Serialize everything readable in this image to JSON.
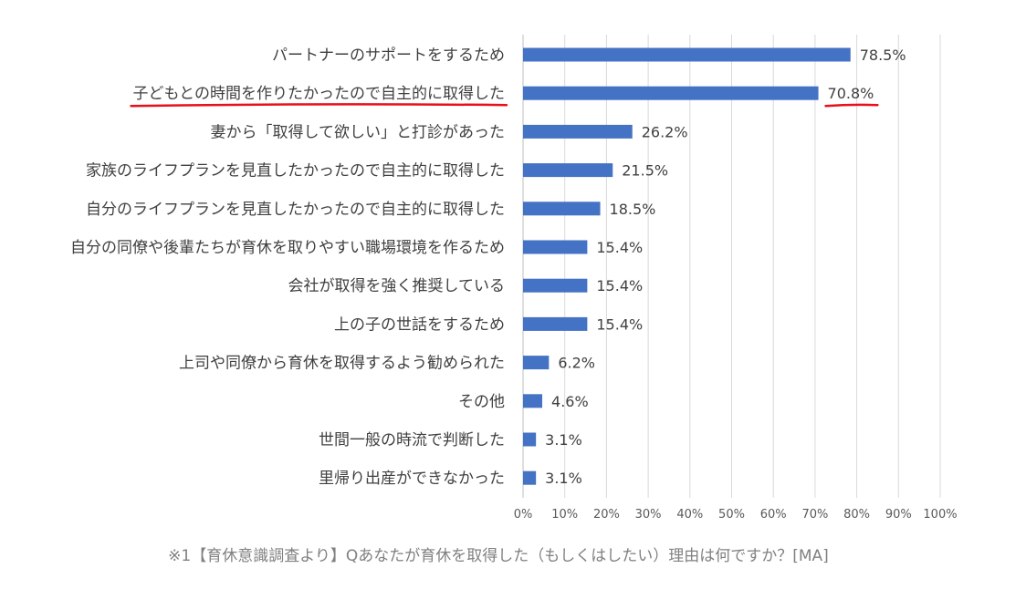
{
  "chart_data": {
    "type": "bar",
    "orientation": "horizontal",
    "categories": [
      "パートナーのサポートをするため",
      "子どもとの時間を作りたかったので自主的に取得した",
      "妻から「取得して欲しい」と打診があった",
      "家族のライフプランを見直したかったので自主的に取得した",
      "自分のライフプランを見直したかったので自主的に取得した",
      "自分の同僚や後輩たちが育休を取りやすい職場環境を作るため",
      "会社が取得を強く推奨している",
      "上の子の世話をするため",
      "上司や同僚から育休を取得するよう勧められた",
      "その他",
      "世間一般の時流で判断した",
      "里帰り出産ができなかった"
    ],
    "values": [
      78.5,
      70.8,
      26.2,
      21.5,
      18.5,
      15.4,
      15.4,
      15.4,
      6.2,
      4.6,
      3.1,
      3.1
    ],
    "value_labels": [
      "78.5%",
      "70.8%",
      "26.2%",
      "21.5%",
      "18.5%",
      "15.4%",
      "15.4%",
      "15.4%",
      "6.2%",
      "4.6%",
      "3.1%",
      "3.1%"
    ],
    "xlim": [
      0,
      100
    ],
    "x_ticks": [
      "0%",
      "10%",
      "20%",
      "30%",
      "40%",
      "50%",
      "60%",
      "70%",
      "80%",
      "90%",
      "100%"
    ],
    "grid": "vertical",
    "bar_color": "#4472C4",
    "highlight_underline_color": "#e8101a",
    "highlighted_category_index": 1,
    "footnote": "※1【育休意識調査より】Qあなたが育休を取得した（もしくはしたい）理由は何ですか？[MA]"
  }
}
